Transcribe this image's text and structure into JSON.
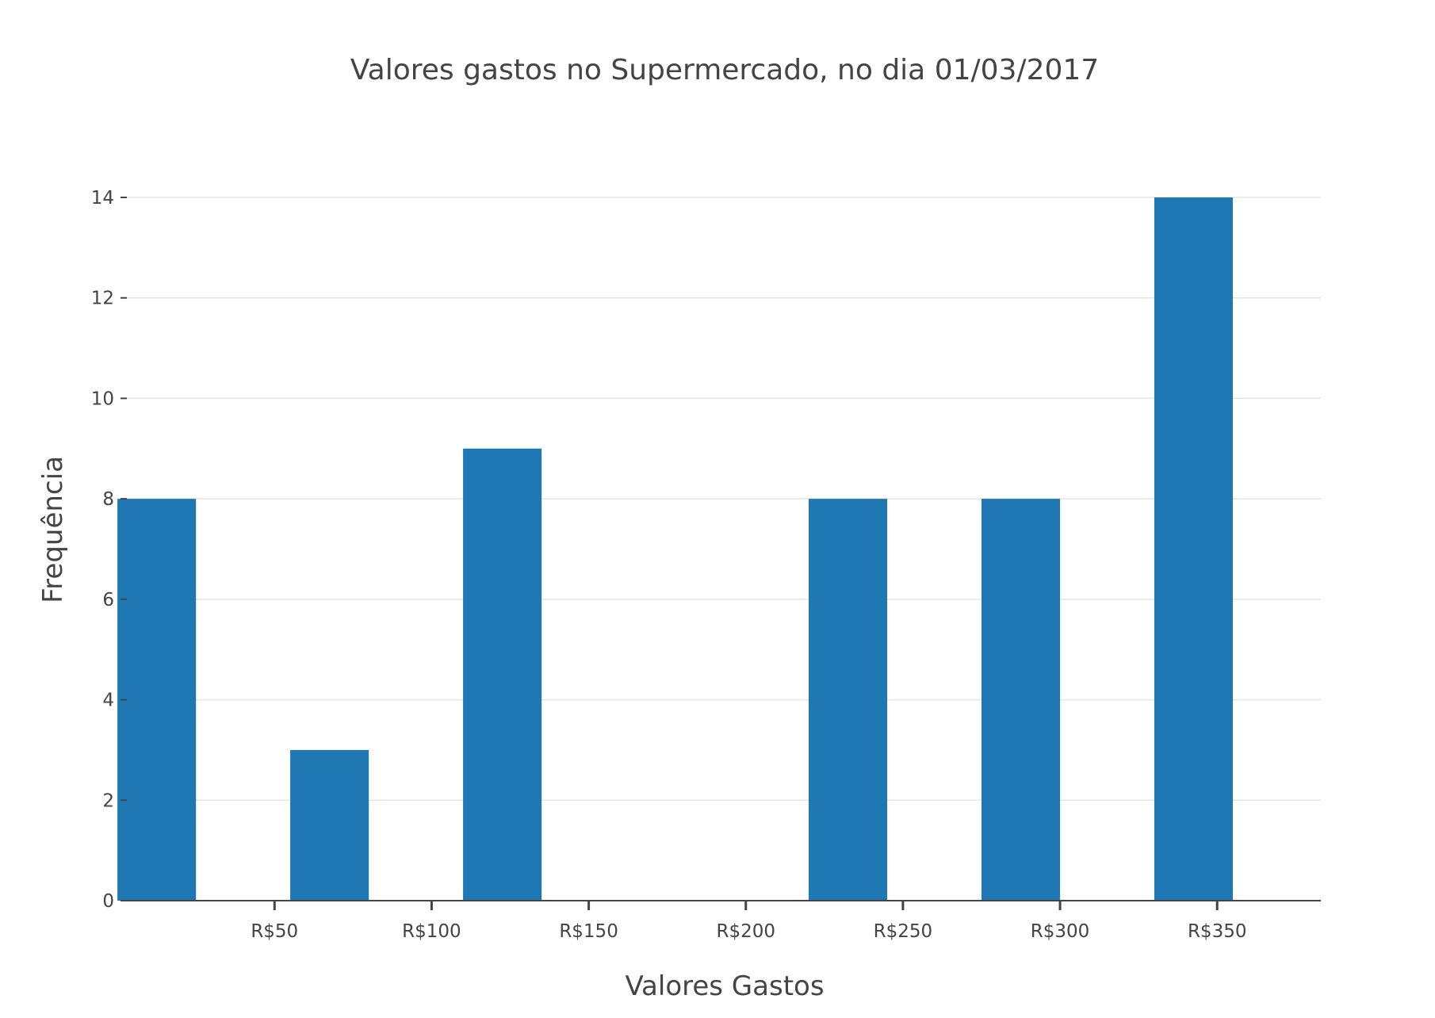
{
  "chart_data": {
    "type": "bar",
    "title": "Valores gastos no Supermercado, no dia 01/03/2017",
    "xlabel": "Valores Gastos",
    "ylabel": "Frequência",
    "x_tick_labels": [
      "R$50",
      "R$100",
      "R$150",
      "R$200",
      "R$250",
      "R$300",
      "R$350"
    ],
    "x_tick_values": [
      50,
      100,
      150,
      200,
      250,
      300,
      350
    ],
    "bars": [
      {
        "x_start": 0,
        "x_end": 25,
        "value": 8
      },
      {
        "x_start": 55,
        "x_end": 80,
        "value": 3
      },
      {
        "x_start": 110,
        "x_end": 135,
        "value": 9
      },
      {
        "x_start": 220,
        "x_end": 245,
        "value": 8
      },
      {
        "x_start": 275,
        "x_end": 300,
        "value": 8
      },
      {
        "x_start": 330,
        "x_end": 355,
        "value": 14
      }
    ],
    "x_range": [
      3,
      383
    ],
    "ylim": [
      0,
      14
    ],
    "y_ticks": [
      0,
      2,
      4,
      6,
      8,
      10,
      12,
      14
    ],
    "grid": true,
    "legend": false,
    "bar_color": "#1f77b4",
    "grid_color": "#e5e5e5",
    "axis_color": "#444444"
  }
}
